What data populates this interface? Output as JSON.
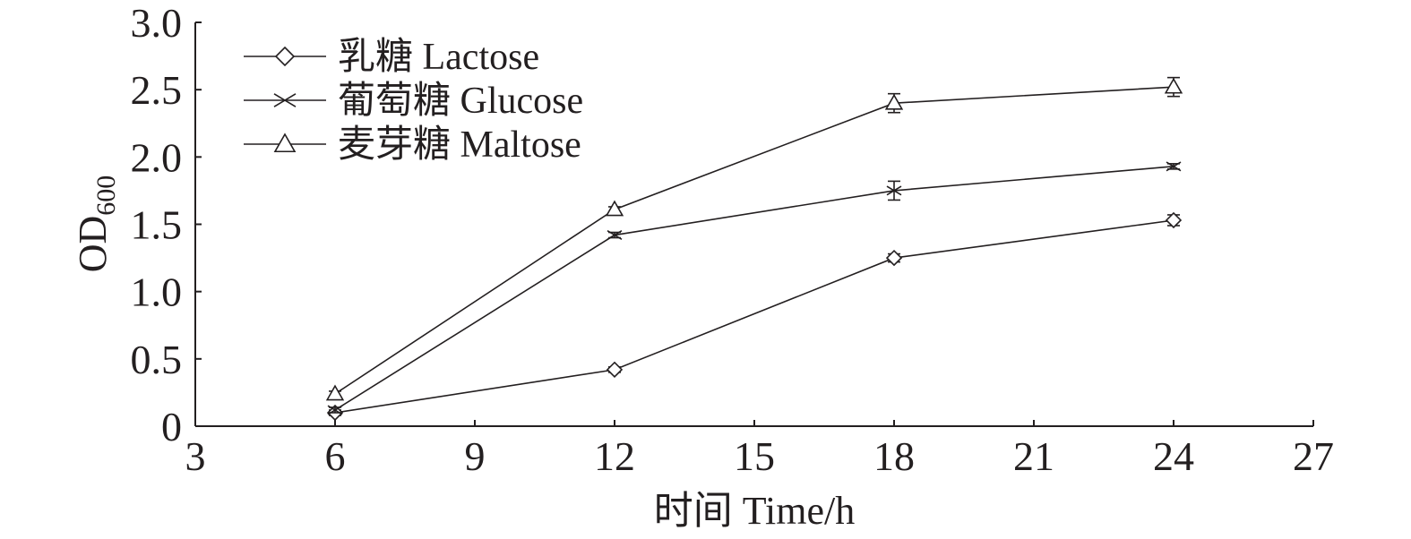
{
  "chart_data": {
    "type": "line",
    "xlabel": "时间 Time/h",
    "ylabel_main": "OD",
    "ylabel_sub": "600",
    "xlim": [
      3,
      27
    ],
    "ylim": [
      0,
      3.0
    ],
    "x_ticks": [
      3,
      6,
      9,
      12,
      15,
      18,
      21,
      24,
      27
    ],
    "x_tick_labels": [
      "3",
      "6",
      "9",
      "12",
      "15",
      "18",
      "21",
      "24",
      "27"
    ],
    "y_ticks": [
      0,
      0.5,
      1.0,
      1.5,
      2.0,
      2.5,
      3.0
    ],
    "y_tick_labels": [
      "0",
      "0.5",
      "1.0",
      "1.5",
      "2.0",
      "2.5",
      "3.0"
    ],
    "legend_position": "top-left",
    "x": [
      6,
      12,
      18,
      24
    ],
    "series": [
      {
        "name": "乳糖 Lactose",
        "marker": "diamond",
        "values": [
          0.1,
          0.42,
          1.25,
          1.53
        ],
        "errors": [
          0.02,
          0.02,
          0.03,
          0.04
        ]
      },
      {
        "name": "葡萄糖 Glucose",
        "marker": "x",
        "values": [
          0.12,
          1.42,
          1.75,
          1.93
        ],
        "errors": [
          0.02,
          0.02,
          0.07,
          0.02
        ]
      },
      {
        "name": "麦芽糖 Maltose",
        "marker": "triangle",
        "values": [
          0.24,
          1.61,
          2.4,
          2.52
        ],
        "errors": [
          0.02,
          0.02,
          0.07,
          0.07
        ]
      }
    ]
  }
}
